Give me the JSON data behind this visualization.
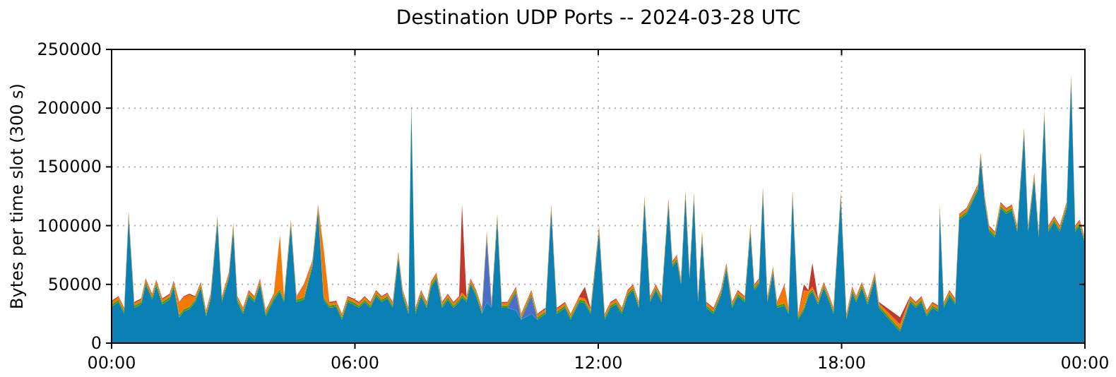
{
  "chart_data": {
    "type": "area",
    "stacked": true,
    "title": "Destination UDP Ports -- 2024-03-28 UTC",
    "ylabel": "Bytes per time slot (300 s)",
    "grid": true,
    "xlim": [
      0,
      24
    ],
    "xticks": [
      {
        "value": 0,
        "label": "00:00"
      },
      {
        "value": 6,
        "label": "06:00"
      },
      {
        "value": 12,
        "label": "12:00"
      },
      {
        "value": 18,
        "label": "18:00"
      },
      {
        "value": 24,
        "label": "00:00"
      }
    ],
    "ylim": [
      0,
      250000
    ],
    "yticks": [
      0,
      50000,
      100000,
      150000,
      200000,
      250000
    ],
    "x": [
      0,
      0.17,
      0.31,
      0.42,
      0.56,
      0.73,
      0.84,
      1.0,
      1.1,
      1.25,
      1.43,
      1.53,
      1.67,
      1.78,
      1.92,
      2.06,
      2.2,
      2.33,
      2.44,
      2.61,
      2.72,
      2.89,
      3.0,
      3.1,
      3.24,
      3.38,
      3.52,
      3.66,
      3.8,
      4.0,
      4.15,
      4.25,
      4.42,
      4.56,
      4.74,
      4.95,
      5.09,
      5.23,
      5.37,
      5.54,
      5.68,
      5.82,
      5.96,
      6.1,
      6.24,
      6.38,
      6.52,
      6.66,
      6.8,
      6.93,
      7.07,
      7.18,
      7.32,
      7.39,
      7.49,
      7.63,
      7.77,
      7.87,
      8.01,
      8.15,
      8.29,
      8.43,
      8.57,
      8.64,
      8.75,
      8.85,
      8.99,
      9.13,
      9.25,
      9.37,
      9.51,
      9.62,
      9.76,
      9.97,
      10.1,
      10.35,
      10.5,
      10.7,
      10.84,
      10.98,
      11.18,
      11.32,
      11.53,
      11.67,
      11.81,
      12.02,
      12.16,
      12.3,
      12.44,
      12.58,
      12.72,
      12.86,
      13.0,
      13.14,
      13.28,
      13.42,
      13.56,
      13.73,
      13.83,
      13.94,
      14.04,
      14.15,
      14.25,
      14.36,
      14.46,
      14.56,
      14.67,
      14.84,
      15.02,
      15.16,
      15.3,
      15.44,
      15.61,
      15.75,
      15.85,
      15.96,
      16.06,
      16.17,
      16.31,
      16.41,
      16.59,
      16.69,
      16.79,
      16.93,
      17.07,
      17.18,
      17.28,
      17.42,
      17.56,
      17.7,
      17.8,
      17.98,
      18.12,
      18.26,
      18.36,
      18.5,
      18.64,
      18.82,
      18.92,
      19.44,
      19.69,
      19.83,
      19.97,
      20.1,
      20.24,
      20.38,
      20.42,
      20.52,
      20.66,
      20.8,
      20.9,
      21.08,
      21.22,
      21.36,
      21.43,
      21.53,
      21.64,
      21.78,
      21.92,
      22.06,
      22.2,
      22.33,
      22.5,
      22.6,
      22.75,
      22.86,
      23.0,
      23.1,
      23.24,
      23.38,
      23.55,
      23.66,
      23.76,
      23.87,
      24.0
    ],
    "series": [
      {
        "color": "#0a80b4",
        "values": [
          31000,
          35000,
          25000,
          107000,
          30000,
          33000,
          50000,
          37000,
          49000,
          33000,
          37000,
          48000,
          22000,
          27000,
          29000,
          35000,
          47000,
          23000,
          37000,
          103000,
          35000,
          55000,
          97000,
          35000,
          25000,
          40000,
          35000,
          50000,
          23000,
          37000,
          44000,
          35000,
          100000,
          35000,
          37000,
          65000,
          113000,
          37000,
          30000,
          31000,
          20000,
          35000,
          33000,
          30000,
          35000,
          30000,
          40000,
          35000,
          38000,
          30000,
          73000,
          40000,
          25000,
          200000,
          25000,
          40000,
          30000,
          47000,
          55000,
          30000,
          37000,
          30000,
          35000,
          39000,
          35000,
          50000,
          40000,
          25000,
          35000,
          30000,
          105000,
          30000,
          30000,
          28000,
          20000,
          25000,
          20000,
          25000,
          113000,
          25000,
          30000,
          20000,
          35000,
          34000,
          25000,
          95000,
          20000,
          30000,
          33000,
          25000,
          40000,
          45000,
          30000,
          120000,
          35000,
          45000,
          35000,
          118000,
          65000,
          70000,
          50000,
          125000,
          55000,
          123000,
          35000,
          90000,
          30000,
          25000,
          40000,
          63000,
          30000,
          40000,
          35000,
          95000,
          45000,
          50000,
          128000,
          35000,
          60000,
          30000,
          32000,
          25000,
          125000,
          20000,
          28000,
          40000,
          44000,
          33000,
          47000,
          35000,
          25000,
          123000,
          20000,
          43000,
          35000,
          47000,
          33000,
          55000,
          30000,
          10000,
          35000,
          30000,
          35000,
          23000,
          30000,
          27000,
          113000,
          30000,
          40000,
          33000,
          105000,
          110000,
          120000,
          130000,
          157000,
          120000,
          95000,
          90000,
          115000,
          110000,
          113000,
          95000,
          178000,
          95000,
          140000,
          90000,
          193000,
          95000,
          103000,
          95000,
          115000,
          223000,
          95000,
          100000,
          85000
        ]
      },
      {
        "color": "#4c6ecb",
        "values": [
          0,
          0,
          0,
          0,
          0,
          0,
          0,
          0,
          0,
          0,
          0,
          0,
          0,
          0,
          0,
          0,
          0,
          0,
          0,
          0,
          0,
          0,
          0,
          0,
          0,
          0,
          0,
          0,
          0,
          0,
          0,
          0,
          0,
          0,
          0,
          0,
          0,
          0,
          0,
          0,
          0,
          0,
          0,
          0,
          0,
          0,
          0,
          0,
          0,
          0,
          0,
          0,
          0,
          0,
          0,
          0,
          0,
          0,
          0,
          0,
          0,
          0,
          0,
          0,
          0,
          0,
          0,
          0,
          55000,
          0,
          0,
          0,
          0,
          15000,
          0,
          15000,
          0,
          0,
          0,
          0,
          0,
          0,
          0,
          0,
          0,
          0,
          0,
          0,
          0,
          0,
          0,
          0,
          0,
          0,
          0,
          0,
          0,
          0,
          0,
          0,
          0,
          0,
          0,
          0,
          0,
          0,
          0,
          0,
          0,
          0,
          0,
          0,
          0,
          0,
          0,
          0,
          0,
          0,
          0,
          0,
          0,
          0,
          0,
          0,
          0,
          0,
          0,
          0,
          0,
          0,
          0,
          0,
          0,
          0,
          0,
          0,
          0,
          0,
          0,
          0,
          0,
          0,
          0,
          0,
          0,
          0,
          0,
          0,
          0,
          0,
          0,
          0,
          0,
          0,
          0,
          0,
          0,
          0,
          0,
          0,
          0,
          0,
          0,
          0,
          0,
          0,
          0,
          0,
          0,
          0,
          0,
          0,
          0,
          0,
          0
        ]
      },
      {
        "color": "#4e9a06",
        "values": [
          2000,
          2000,
          2000,
          2000,
          2000,
          2000,
          2000,
          2000,
          2000,
          2000,
          2000,
          2000,
          2000,
          2000,
          2000,
          2000,
          2000,
          2000,
          2000,
          2000,
          2000,
          2000,
          2000,
          2000,
          2000,
          2000,
          2000,
          2000,
          2000,
          2000,
          2000,
          2000,
          2000,
          2000,
          2000,
          2000,
          2000,
          2000,
          2000,
          2000,
          2000,
          2000,
          2000,
          2000,
          2000,
          2000,
          2000,
          2000,
          2000,
          2000,
          2000,
          2000,
          2000,
          2000,
          2000,
          2000,
          2000,
          2000,
          2000,
          2000,
          2000,
          2000,
          2000,
          2000,
          2000,
          2000,
          2000,
          2000,
          2000,
          2000,
          2000,
          2000,
          2000,
          2000,
          2000,
          2000,
          2000,
          2000,
          2000,
          2000,
          2000,
          2000,
          2000,
          2000,
          2000,
          2000,
          2000,
          2000,
          2000,
          2000,
          2000,
          2000,
          2000,
          2000,
          2000,
          2000,
          2000,
          2000,
          2000,
          2000,
          2000,
          2000,
          2000,
          2000,
          2000,
          2000,
          2000,
          2000,
          2000,
          2000,
          2000,
          2000,
          2000,
          2000,
          2000,
          2000,
          2000,
          2000,
          2000,
          2000,
          2000,
          2000,
          2000,
          2000,
          2000,
          2000,
          2000,
          2000,
          2000,
          2000,
          2000,
          2000,
          2000,
          2000,
          2000,
          2000,
          2000,
          2000,
          2000,
          2000,
          2000,
          2000,
          2000,
          2000,
          2000,
          2000,
          2000,
          2000,
          2000,
          2000,
          2000,
          2000,
          2000,
          2000,
          2000,
          2000,
          2000,
          2000,
          2000,
          2000,
          2000,
          2000,
          2000,
          2000,
          2000,
          2000,
          2000,
          2000,
          2000,
          2000,
          2000,
          2000,
          2000,
          2000,
          2000
        ]
      },
      {
        "color": "#f57900",
        "values": [
          2000,
          2000,
          2000,
          2000,
          2000,
          2000,
          2000,
          2000,
          2000,
          2000,
          2000,
          2000,
          10000,
          10000,
          10000,
          2000,
          2000,
          2000,
          2000,
          2000,
          2000,
          2000,
          2000,
          2000,
          2000,
          2000,
          2000,
          2000,
          2000,
          2000,
          45000,
          2000,
          2000,
          2000,
          10000,
          2000,
          2000,
          40000,
          2000,
          2000,
          2000,
          2000,
          2000,
          2000,
          2000,
          2000,
          2000,
          2000,
          2000,
          2000,
          2000,
          2000,
          2000,
          2000,
          2000,
          2000,
          2000,
          2000,
          2000,
          2000,
          2000,
          2000,
          2000,
          2000,
          2000,
          2000,
          2000,
          2000,
          2000,
          2000,
          2000,
          2000,
          2000,
          2000,
          2000,
          2000,
          2000,
          2000,
          2000,
          2000,
          2000,
          2000,
          2000,
          2000,
          2000,
          2000,
          2000,
          2000,
          2000,
          2000,
          2000,
          2000,
          2000,
          2000,
          2000,
          2000,
          2000,
          2000,
          2000,
          2000,
          2000,
          2000,
          2000,
          2000,
          2000,
          2000,
          2000,
          2000,
          2000,
          2000,
          2000,
          2000,
          2000,
          2000,
          2000,
          2000,
          2000,
          2000,
          2000,
          2000,
          15000,
          2000,
          2000,
          2000,
          15000,
          2000,
          2000,
          2000,
          2000,
          2000,
          2000,
          2000,
          2000,
          2000,
          2000,
          2000,
          2000,
          2000,
          2000,
          4000,
          2000,
          2000,
          2000,
          2000,
          2000,
          2000,
          2000,
          2000,
          2000,
          2000,
          2000,
          2000,
          2000,
          2000,
          2000,
          2000,
          2000,
          2000,
          2000,
          2000,
          2000,
          2000,
          2000,
          2000,
          2000,
          2000,
          2000,
          2000,
          2000,
          2000,
          2000,
          2000,
          2000,
          2000,
          2000
        ]
      },
      {
        "color": "#c0392b",
        "values": [
          1000,
          1000,
          1000,
          1000,
          1000,
          1000,
          1000,
          1000,
          1000,
          1000,
          1000,
          1000,
          1000,
          1000,
          1000,
          1000,
          1000,
          1000,
          1000,
          1000,
          1000,
          1000,
          1000,
          1000,
          1000,
          1000,
          1000,
          1000,
          1000,
          1000,
          1000,
          1000,
          1000,
          1000,
          1000,
          1000,
          1000,
          1000,
          1000,
          1000,
          1000,
          1000,
          1000,
          1000,
          1000,
          1000,
          1000,
          1000,
          1000,
          1000,
          1000,
          1000,
          1000,
          1000,
          1000,
          1000,
          1000,
          1000,
          1000,
          1000,
          1000,
          1000,
          1000,
          75000,
          1000,
          1000,
          1000,
          1000,
          1000,
          1000,
          1000,
          1000,
          1000,
          1000,
          1000,
          1000,
          1000,
          1000,
          1000,
          1000,
          1000,
          1000,
          1000,
          10000,
          1000,
          1000,
          1000,
          1000,
          1000,
          1000,
          1000,
          1000,
          1000,
          1000,
          1000,
          1000,
          1000,
          1000,
          1000,
          1000,
          1000,
          1000,
          1000,
          1000,
          1000,
          1000,
          1000,
          1000,
          1000,
          1000,
          1000,
          1000,
          1000,
          1000,
          1000,
          1000,
          1000,
          1000,
          1000,
          1000,
          1000,
          1000,
          1000,
          1000,
          5000,
          1000,
          20000,
          1000,
          1000,
          1000,
          1000,
          1000,
          1000,
          1000,
          1000,
          1000,
          1000,
          1000,
          1000,
          6000,
          1000,
          1000,
          1000,
          1000,
          1000,
          1000,
          1000,
          1000,
          1000,
          1000,
          1000,
          1000,
          1000,
          1000,
          1000,
          1000,
          1000,
          1000,
          1000,
          1000,
          1000,
          1000,
          1000,
          1000,
          1000,
          1000,
          1000,
          1000,
          1000,
          1000,
          1000,
          1000,
          1000,
          1000,
          1000
        ]
      }
    ]
  }
}
